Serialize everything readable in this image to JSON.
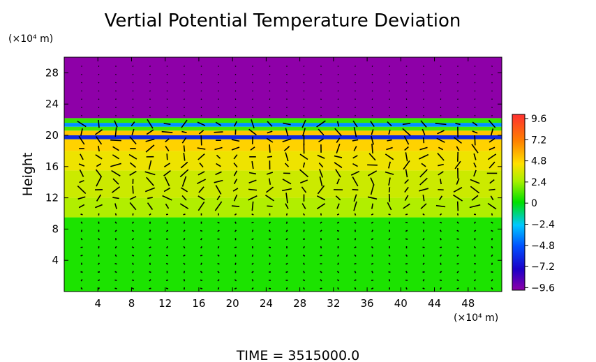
{
  "chart_data": {
    "type": "heatmap",
    "title": "Vertial Potential Temperature Deviation",
    "ylabel": "Height",
    "x_unit": "(×10⁴ m)",
    "y_unit": "(×10⁴ m)",
    "xlim": [
      0,
      52
    ],
    "ylim": [
      0,
      30
    ],
    "xticks": [
      4,
      8,
      12,
      16,
      20,
      24,
      28,
      32,
      36,
      40,
      44,
      48
    ],
    "yticks": [
      4,
      8,
      12,
      16,
      20,
      24,
      28
    ],
    "colorbar": {
      "range": [
        -9.6,
        9.6
      ],
      "ticks": [
        "9.6",
        "7.2",
        "4.8",
        "2.4",
        "0",
        "−2.4",
        "−4.8",
        "−7.2",
        "−9.6"
      ]
    },
    "footer": "TIME = 3515000.0",
    "bands": [
      {
        "from": 0,
        "to": 9.5,
        "value": 0.4
      },
      {
        "from": 9.5,
        "to": 12,
        "value": 2.6
      },
      {
        "from": 12,
        "to": 15.5,
        "value": 3.2
      },
      {
        "from": 15.5,
        "to": 18,
        "value": 4.0
      },
      {
        "from": 18,
        "to": 19.5,
        "value": 4.8
      },
      {
        "from": 19.5,
        "to": 20,
        "value": -6.0
      },
      {
        "from": 20,
        "to": 20.6,
        "value": 5.2
      },
      {
        "from": 20.6,
        "to": 21.1,
        "value": 1.0
      },
      {
        "from": 21.1,
        "to": 21.6,
        "value": -3.5
      },
      {
        "from": 21.6,
        "to": 22.2,
        "value": 0.8
      },
      {
        "from": 22.2,
        "to": 30,
        "value": -9.6
      }
    ]
  }
}
